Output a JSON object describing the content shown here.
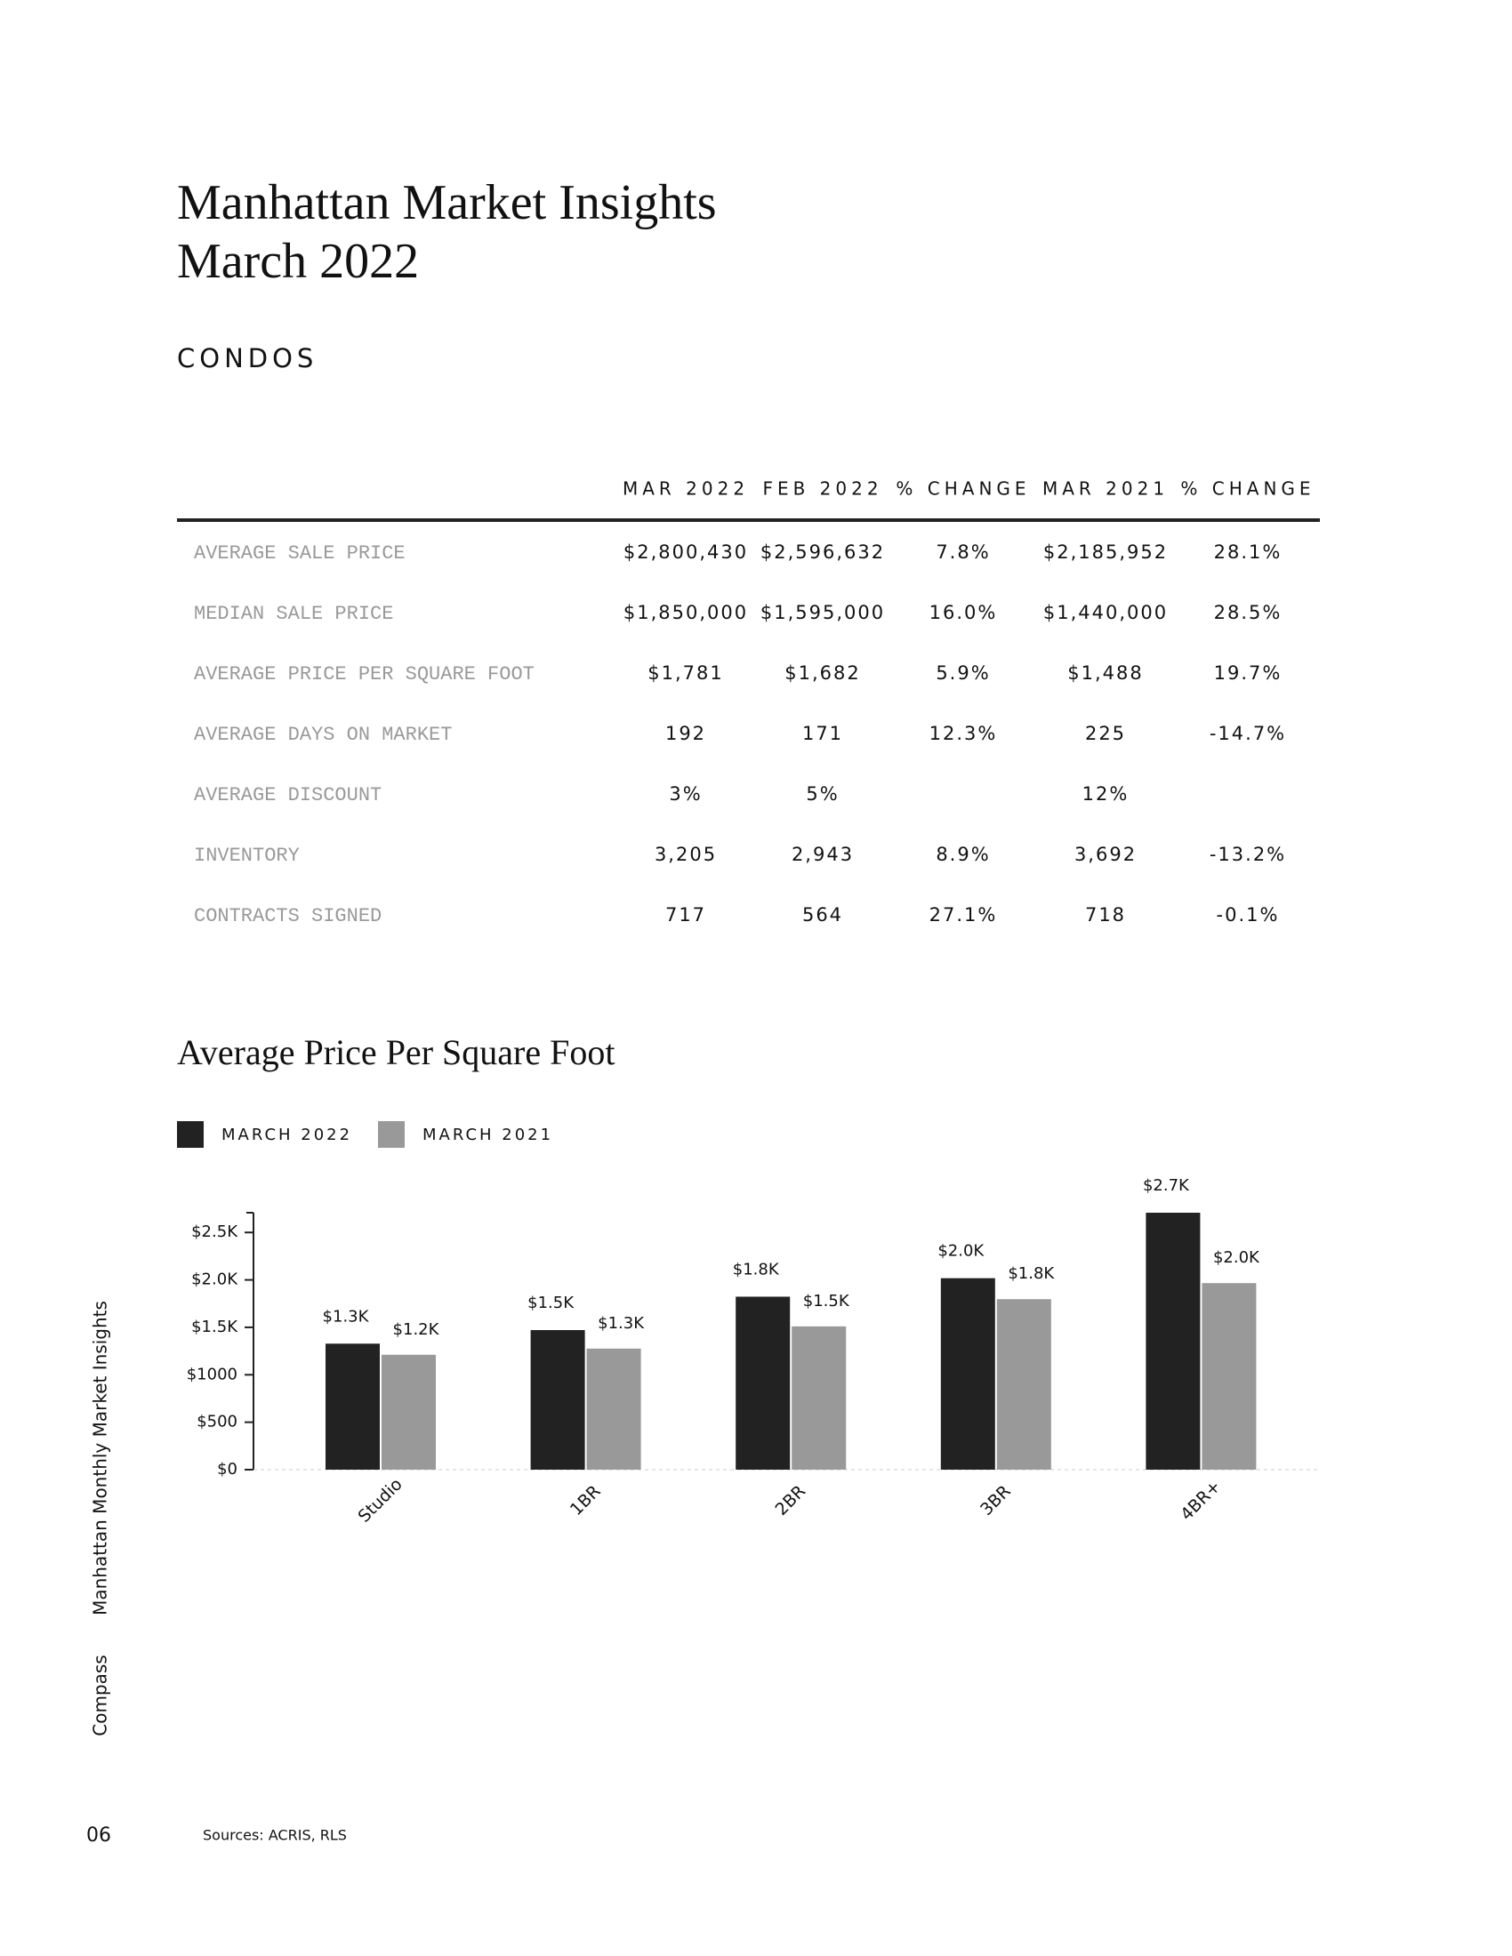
{
  "header": {
    "title_line1": "Manhattan Market Insights",
    "title_line2": "March 2022",
    "section": "CONDOS"
  },
  "table": {
    "columns": [
      "MAR 2022",
      "FEB 2022",
      "% CHANGE",
      "MAR 2021",
      "% CHANGE"
    ],
    "rows": [
      {
        "label": "AVERAGE SALE PRICE",
        "values": [
          "$2,800,430",
          "$2,596,632",
          "7.8%",
          "$2,185,952",
          "28.1%"
        ]
      },
      {
        "label": "MEDIAN SALE PRICE",
        "values": [
          "$1,850,000",
          "$1,595,000",
          "16.0%",
          "$1,440,000",
          "28.5%"
        ]
      },
      {
        "label": "AVERAGE PRICE PER SQUARE FOOT",
        "values": [
          "$1,781",
          "$1,682",
          "5.9%",
          "$1,488",
          "19.7%"
        ]
      },
      {
        "label": "AVERAGE DAYS ON MARKET",
        "values": [
          "192",
          "171",
          "12.3%",
          "225",
          "-14.7%"
        ]
      },
      {
        "label": "AVERAGE DISCOUNT",
        "values": [
          "3%",
          "5%",
          null,
          "12%",
          null
        ]
      },
      {
        "label": "INVENTORY",
        "values": [
          "3,205",
          "2,943",
          "8.9%",
          "3,692",
          "-13.2%"
        ]
      },
      {
        "label": "CONTRACTS SIGNED",
        "values": [
          "717",
          "564",
          "27.1%",
          "718",
          "-0.1%"
        ]
      }
    ]
  },
  "chart_data": {
    "type": "bar",
    "title": "Average Price Per Square Foot",
    "categories": [
      "Studio",
      "1BR",
      "2BR",
      "3BR",
      "4BR+"
    ],
    "series": [
      {
        "name": "MARCH 2022",
        "color": "#222222",
        "values": [
          1328,
          1471,
          1823,
          2018,
          2708
        ],
        "value_labels": [
          "$1.3K",
          "$1.5K",
          "$1.8K",
          "$2.0K",
          "$2.7K"
        ]
      },
      {
        "name": "MARCH 2021",
        "color": "#999999",
        "values": [
          1211,
          1276,
          1510,
          1797,
          1966
        ],
        "value_labels": [
          "$1.2K",
          "$1.3K",
          "$1.5K",
          "$1.8K",
          "$2.0K"
        ]
      }
    ],
    "ylim": [
      0,
      2708
    ],
    "yticks": [
      {
        "value": 0,
        "label": "$0"
      },
      {
        "value": 500,
        "label": "$500"
      },
      {
        "value": 1000,
        "label": "$1000"
      },
      {
        "value": 1500,
        "label": "$1.5K"
      },
      {
        "value": 2000,
        "label": "$2.0K"
      },
      {
        "value": 2500,
        "label": "$2.5K"
      }
    ]
  },
  "sidebar": {
    "publication": "Manhattan Monthly Market Insights",
    "brand": "Compass"
  },
  "footer": {
    "page_number": "06",
    "sources": "Sources: ACRIS, RLS"
  }
}
